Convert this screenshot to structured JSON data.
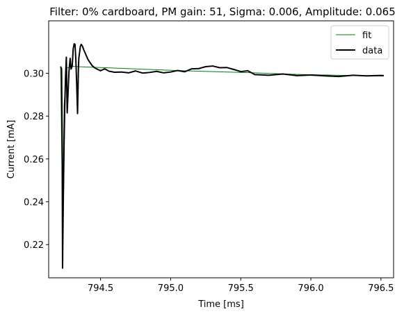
{
  "chart_data": {
    "type": "line",
    "title": "Filter: 0% cardboard, PM gain: 51, Sigma: 0.006, Amplitude: 0.065",
    "xlabel": "Time [ms]",
    "ylabel": "Current [mA]",
    "xlim": [
      794.13,
      796.59
    ],
    "ylim": [
      0.2045,
      0.3245
    ],
    "xticks": [
      794.5,
      795.0,
      795.5,
      796.0,
      796.5
    ],
    "xtick_labels": [
      "794.5",
      "795.0",
      "795.5",
      "796.0",
      "796.5"
    ],
    "yticks": [
      0.22,
      0.24,
      0.26,
      0.28,
      0.3
    ],
    "ytick_labels": [
      "0.22",
      "0.24",
      "0.26",
      "0.28",
      "0.30"
    ],
    "legend_position": "top-right",
    "grid": false,
    "series": [
      {
        "name": "fit",
        "color": "#008000",
        "x": [
          794.215,
          794.229,
          794.24,
          794.26,
          794.3,
          794.5,
          794.8,
          795.0,
          795.3,
          795.6,
          795.9,
          796.2,
          796.52
        ],
        "y": [
          0.3031,
          0.234,
          0.2855,
          0.3025,
          0.3032,
          0.3027,
          0.3019,
          0.3014,
          0.3008,
          0.3002,
          0.2995,
          0.2991,
          0.2987
        ]
      },
      {
        "name": "data",
        "color": "#000000",
        "x": [
          794.215,
          794.222,
          794.226,
          794.229,
          794.234,
          794.24,
          794.245,
          794.25,
          794.256,
          794.262,
          794.268,
          794.275,
          794.283,
          794.29,
          794.298,
          794.305,
          794.312,
          794.318,
          794.324,
          794.33,
          794.336,
          794.342,
          794.345,
          794.35,
          794.356,
          794.362,
          794.37,
          794.38,
          794.39,
          794.4,
          794.41,
          794.425,
          794.44,
          794.46,
          794.48,
          794.5,
          794.53,
          794.56,
          794.6,
          794.65,
          794.7,
          794.75,
          794.8,
          794.85,
          794.9,
          794.95,
          795.0,
          795.05,
          795.1,
          795.15,
          795.2,
          795.25,
          795.3,
          795.35,
          795.4,
          795.45,
          795.5,
          795.55,
          795.6,
          795.7,
          795.8,
          795.9,
          796.0,
          796.1,
          796.2,
          796.3,
          796.4,
          796.5,
          796.52
        ],
        "y": [
          0.3032,
          0.302,
          0.27,
          0.209,
          0.239,
          0.268,
          0.2855,
          0.298,
          0.3075,
          0.2815,
          0.2905,
          0.301,
          0.307,
          0.302,
          0.3035,
          0.3115,
          0.3138,
          0.3135,
          0.306,
          0.2945,
          0.2812,
          0.302,
          0.307,
          0.3095,
          0.3125,
          0.3135,
          0.3128,
          0.311,
          0.3095,
          0.308,
          0.3065,
          0.305,
          0.3036,
          0.3025,
          0.3018,
          0.3012,
          0.3021,
          0.301,
          0.3005,
          0.3006,
          0.3002,
          0.3011,
          0.3001,
          0.3004,
          0.3009,
          0.3002,
          0.3006,
          0.3013,
          0.3007,
          0.3021,
          0.3022,
          0.3031,
          0.3034,
          0.3026,
          0.3027,
          0.3018,
          0.3008,
          0.3012,
          0.2994,
          0.2991,
          0.2997,
          0.2989,
          0.2992,
          0.2988,
          0.2985,
          0.2991,
          0.2988,
          0.299,
          0.2989
        ]
      }
    ]
  }
}
